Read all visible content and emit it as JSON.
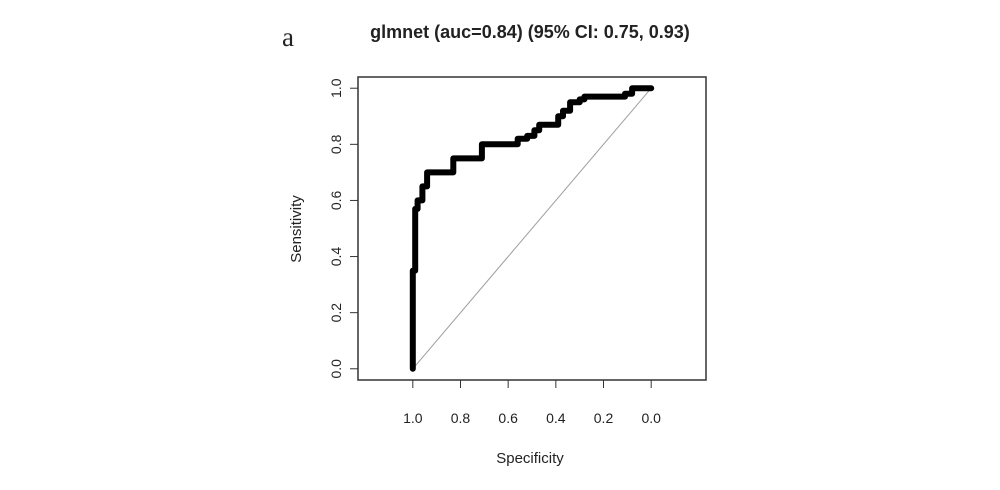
{
  "figure": {
    "panel_label": "a"
  },
  "chart_data": {
    "type": "line",
    "title": "glmnet (auc=0.84) (95% CI: 0.75, 0.93)",
    "xlabel": "Specificity",
    "ylabel": "Sensitivity",
    "x_reversed": true,
    "xlim": [
      1.23,
      -0.23
    ],
    "ylim": [
      -0.04,
      1.04
    ],
    "x_ticks": [
      "1.0",
      "0.8",
      "0.6",
      "0.4",
      "0.2",
      "0.0"
    ],
    "y_ticks": [
      "0.0",
      "0.2",
      "0.4",
      "0.6",
      "0.8",
      "1.0"
    ],
    "grid": false,
    "legend": "none",
    "colors": {
      "roc": "#000000",
      "reference": "#9e9e9e",
      "frame": "#333333"
    },
    "reference_line": {
      "x": [
        1.0,
        0.0
      ],
      "y": [
        0.0,
        1.0
      ]
    },
    "series": [
      {
        "x": [
          1.0,
          1.0,
          0.99,
          0.99,
          0.98,
          0.98,
          0.96,
          0.96,
          0.94,
          0.94,
          0.83,
          0.83,
          0.71,
          0.71,
          0.56,
          0.56,
          0.52,
          0.52,
          0.49,
          0.49,
          0.47,
          0.47,
          0.39,
          0.39,
          0.37,
          0.37,
          0.34,
          0.34,
          0.3,
          0.3,
          0.28,
          0.28,
          0.11,
          0.11,
          0.08,
          0.08,
          0.0
        ],
        "y": [
          0.0,
          0.35,
          0.35,
          0.57,
          0.57,
          0.6,
          0.6,
          0.65,
          0.65,
          0.7,
          0.7,
          0.75,
          0.75,
          0.8,
          0.8,
          0.82,
          0.82,
          0.83,
          0.83,
          0.85,
          0.85,
          0.87,
          0.87,
          0.9,
          0.9,
          0.92,
          0.92,
          0.95,
          0.95,
          0.96,
          0.96,
          0.97,
          0.97,
          0.98,
          0.98,
          1.0,
          1.0
        ]
      }
    ]
  }
}
